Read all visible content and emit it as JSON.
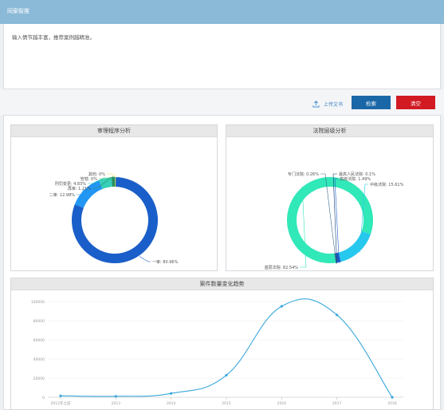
{
  "header": {
    "title": "同案智推"
  },
  "input": {
    "placeholder": "输入情节越丰富，推荐案例越精准。"
  },
  "toolbar": {
    "upload_label": "上传文书",
    "search_label": "检索",
    "clear_label": "清空"
  },
  "colors": {
    "header_bg": "#8bbad8",
    "search_button": "#1a67a8",
    "clear_button": "#d21a22",
    "donut_blue": "#1a5ec9",
    "donut_teal": "#31e8b8",
    "line": "#3aa8dc"
  },
  "icons": {
    "upload": "upload-icon"
  },
  "chart_data": [
    {
      "type": "pie",
      "title": "审理程序分析",
      "donut": true,
      "slices": [
        {
          "label": "一审",
          "value": 80.96,
          "display": "一审: 80.96%",
          "color": "#1a5ec9"
        },
        {
          "label": "二审",
          "value": 12.98,
          "display": "二审: 12.98%",
          "color": "#2196f3"
        },
        {
          "label": "刑罚变更",
          "value": 4.83,
          "display": "刑罚变更: 4.83%",
          "color": "#35d0b7"
        },
        {
          "label": "再审",
          "value": 1.21,
          "display": "再审: 1.21%",
          "color": "#2a8f60"
        },
        {
          "label": "管辖",
          "value": 0,
          "display": "管辖: 0%",
          "color": "#7bc96f"
        },
        {
          "label": "其他",
          "value": 0,
          "display": "其他: 0%",
          "color": "#f2e14c"
        }
      ]
    },
    {
      "type": "pie",
      "title": "法院层级分析",
      "donut": true,
      "slices": [
        {
          "label": "基层法院",
          "value": 82.54,
          "display": "基层法院: 82.54%",
          "color": "#31e8b8"
        },
        {
          "label": "中级法院",
          "value": 15.61,
          "display": "中级法院: 15.61%",
          "color": "#27c8ee"
        },
        {
          "label": "高级法院",
          "value": 1.49,
          "display": "高级法院: 1.49%",
          "color": "#1a5ec9"
        },
        {
          "label": "最高人民法院",
          "value": 0.1,
          "display": "最高人民法院: 0.1%",
          "color": "#0d3b73"
        },
        {
          "label": "专门法院",
          "value": 0.26,
          "display": "专门法院: 0.26%",
          "color": "#3a6d8f"
        }
      ]
    },
    {
      "type": "line",
      "title": "案件数量变化趋势",
      "categories": [
        "2012年之前",
        "2013",
        "2014",
        "2015",
        "2016",
        "2017",
        "2018"
      ],
      "series": [
        {
          "values": [
            1500,
            1000,
            4000,
            23000,
            95000,
            86000,
            0
          ]
        }
      ],
      "ylim": [
        0,
        100000
      ],
      "yticks": [
        0,
        20000,
        40000,
        60000,
        80000,
        100000
      ],
      "ytick_labels": [
        "0",
        "20000",
        "40000",
        "60000",
        "80000",
        "100000"
      ],
      "grid": true
    }
  ]
}
